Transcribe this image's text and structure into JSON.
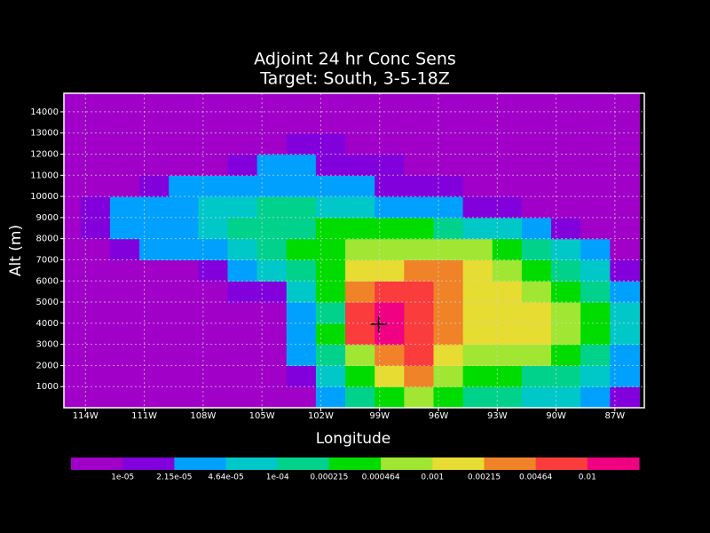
{
  "chart_data": {
    "type": "contour",
    "title": [
      "Adjoint 24 hr Conc Sens",
      "Target: South, 3-5-18Z"
    ],
    "xlabel": "Longitude",
    "ylabel": "Alt (m)",
    "xlim": [
      -115.1,
      -85.5
    ],
    "ylim": [
      0,
      14880
    ],
    "xticks": [
      {
        "value": -114,
        "label": "114W"
      },
      {
        "value": -111,
        "label": "111W"
      },
      {
        "value": -108,
        "label": "108W"
      },
      {
        "value": -105,
        "label": "105W"
      },
      {
        "value": -102,
        "label": "102W"
      },
      {
        "value": -99,
        "label": "99W"
      },
      {
        "value": -96,
        "label": "96W"
      },
      {
        "value": -93,
        "label": "93W"
      },
      {
        "value": -90,
        "label": "90W"
      },
      {
        "value": -87,
        "label": "87W"
      }
    ],
    "yticks": [
      1000,
      2000,
      3000,
      4000,
      5000,
      6000,
      7000,
      8000,
      9000,
      10000,
      11000,
      12000,
      13000,
      14000
    ],
    "grid": true,
    "levels": [
      {
        "value": 1e-05,
        "label": "1e-05"
      },
      {
        "value": 2.15e-05,
        "label": "2.15e-05"
      },
      {
        "value": 4.64e-05,
        "label": "4.64e-05"
      },
      {
        "value": 0.0001,
        "label": "1e-04"
      },
      0.000215,
      0.000464,
      0.001,
      0.00215,
      0.00464,
      0.01
    ],
    "colors": [
      "#a000c8",
      "#8200dc",
      "#00a0ff",
      "#00c8c8",
      "#00d28c",
      "#00dc00",
      "#a0e632",
      "#e6dc32",
      "#f08228",
      "#fa3c3c",
      "#f00082"
    ],
    "x": [
      -115,
      -113.5,
      -112,
      -110.5,
      -109,
      -107.5,
      -106,
      -104.5,
      -103,
      -101.5,
      -100,
      -98.5,
      -97,
      -95.5,
      -94,
      -92.5,
      -91,
      -89.5,
      -88,
      -86.5
    ],
    "y": [
      500,
      1500,
      2500,
      3500,
      4500,
      5500,
      6500,
      7500,
      8500,
      9500,
      10500,
      11500,
      12500,
      13500,
      14500
    ],
    "z": [
      [
        5e-06,
        5e-06,
        5e-06,
        5e-06,
        5e-06,
        5e-06,
        5e-06,
        5e-06,
        5e-06,
        3e-05,
        0.00015,
        0.0003,
        0.0007,
        0.0003,
        0.00015,
        0.00015,
        7e-05,
        7e-05,
        3e-05,
        1.5e-05
      ],
      [
        5e-06,
        5e-06,
        5e-06,
        5e-06,
        5e-06,
        5e-06,
        5e-06,
        5e-06,
        1.5e-05,
        7e-05,
        0.0003,
        0.0015,
        0.003,
        0.0007,
        0.0003,
        0.0003,
        0.00015,
        0.00015,
        7e-05,
        3e-05
      ],
      [
        5e-06,
        5e-06,
        5e-06,
        5e-06,
        5e-06,
        5e-06,
        5e-06,
        5e-06,
        3e-05,
        0.00015,
        0.0007,
        0.003,
        0.007,
        0.0015,
        0.0007,
        0.0007,
        0.0007,
        0.0003,
        0.00015,
        3e-05
      ],
      [
        5e-06,
        5e-06,
        5e-06,
        5e-06,
        5e-06,
        5e-06,
        5e-06,
        5e-06,
        3e-05,
        0.0003,
        0.007,
        0.015,
        0.007,
        0.003,
        0.0015,
        0.0015,
        0.0015,
        0.0007,
        0.0003,
        7e-05
      ],
      [
        5e-06,
        5e-06,
        5e-06,
        5e-06,
        5e-06,
        5e-06,
        5e-06,
        5e-06,
        3e-05,
        0.00015,
        0.007,
        0.015,
        0.007,
        0.003,
        0.0015,
        0.0015,
        0.0015,
        0.0007,
        0.0003,
        7e-05
      ],
      [
        5e-06,
        5e-06,
        5e-06,
        5e-06,
        5e-06,
        5e-06,
        1.5e-05,
        1.5e-05,
        7e-05,
        0.0003,
        0.003,
        0.007,
        0.007,
        0.003,
        0.0015,
        0.0015,
        0.0007,
        0.0003,
        0.00015,
        3e-05
      ],
      [
        5e-06,
        5e-06,
        5e-06,
        5e-06,
        5e-06,
        1.5e-05,
        3e-05,
        7e-05,
        0.00015,
        0.0003,
        0.0015,
        0.0015,
        0.003,
        0.003,
        0.0015,
        0.0007,
        0.0003,
        0.00015,
        7e-05,
        1.5e-05
      ],
      [
        5e-06,
        5e-06,
        1.5e-05,
        3e-05,
        3e-05,
        3e-05,
        7e-05,
        0.00015,
        0.0003,
        0.0003,
        0.0007,
        0.0007,
        0.0007,
        0.0007,
        0.0007,
        0.0003,
        0.00015,
        7e-05,
        3e-05,
        5e-06
      ],
      [
        5e-06,
        1.5e-05,
        3e-05,
        3e-05,
        3e-05,
        7e-05,
        0.00015,
        0.00015,
        0.00015,
        0.0003,
        0.0003,
        0.0003,
        0.0003,
        0.00015,
        7e-05,
        7e-05,
        3e-05,
        1.5e-05,
        5e-06,
        5e-06
      ],
      [
        5e-06,
        1.5e-05,
        3e-05,
        3e-05,
        3e-05,
        7e-05,
        7e-05,
        0.00015,
        0.00015,
        7e-05,
        7e-05,
        3e-05,
        3e-05,
        3e-05,
        1.5e-05,
        1.5e-05,
        5e-06,
        5e-06,
        5e-06,
        5e-06
      ],
      [
        5e-06,
        5e-06,
        5e-06,
        1.5e-05,
        3e-05,
        3e-05,
        3e-05,
        3e-05,
        3e-05,
        3e-05,
        3e-05,
        1.5e-05,
        1.5e-05,
        1.5e-05,
        5e-06,
        5e-06,
        5e-06,
        5e-06,
        5e-06,
        5e-06
      ],
      [
        5e-06,
        5e-06,
        5e-06,
        5e-06,
        5e-06,
        5e-06,
        1.5e-05,
        3e-05,
        3e-05,
        1.5e-05,
        1.5e-05,
        1.5e-05,
        5e-06,
        5e-06,
        5e-06,
        5e-06,
        5e-06,
        5e-06,
        5e-06,
        5e-06
      ],
      [
        5e-06,
        5e-06,
        5e-06,
        5e-06,
        5e-06,
        5e-06,
        5e-06,
        5e-06,
        1.5e-05,
        1.5e-05,
        5e-06,
        5e-06,
        5e-06,
        5e-06,
        5e-06,
        5e-06,
        5e-06,
        5e-06,
        5e-06,
        5e-06
      ],
      [
        5e-06,
        5e-06,
        5e-06,
        5e-06,
        5e-06,
        5e-06,
        5e-06,
        5e-06,
        5e-06,
        5e-06,
        5e-06,
        5e-06,
        5e-06,
        5e-06,
        5e-06,
        5e-06,
        5e-06,
        5e-06,
        5e-06,
        5e-06
      ],
      [
        5e-06,
        5e-06,
        5e-06,
        5e-06,
        5e-06,
        5e-06,
        5e-06,
        5e-06,
        5e-06,
        5e-06,
        5e-06,
        5e-06,
        5e-06,
        5e-06,
        5e-06,
        5e-06,
        5e-06,
        5e-06,
        5e-06,
        5e-06
      ]
    ],
    "target": {
      "lon": -99.05,
      "alt": 3950
    }
  }
}
